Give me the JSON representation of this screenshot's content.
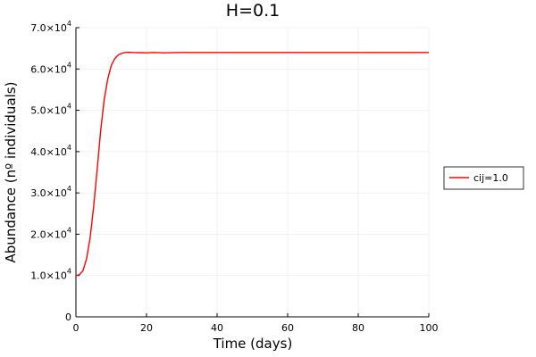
{
  "chart_data": {
    "type": "line",
    "title": "H=0.1",
    "xlabel": "Time (days)",
    "ylabel": "Abundance (nº individuals)",
    "xlim": [
      0,
      100
    ],
    "ylim": [
      0,
      70000
    ],
    "x_ticks": [
      0,
      20,
      40,
      60,
      80,
      100
    ],
    "x_tick_labels": [
      "0",
      "20",
      "40",
      "60",
      "80",
      "100"
    ],
    "y_ticks": [
      0,
      10000,
      20000,
      30000,
      40000,
      50000,
      60000,
      70000
    ],
    "y_tick_labels": [
      {
        "mantissa": "0",
        "exponent": ""
      },
      {
        "mantissa": "1.0×10",
        "exponent": "4"
      },
      {
        "mantissa": "2.0×10",
        "exponent": "4"
      },
      {
        "mantissa": "3.0×10",
        "exponent": "4"
      },
      {
        "mantissa": "4.0×10",
        "exponent": "4"
      },
      {
        "mantissa": "5.0×10",
        "exponent": "4"
      },
      {
        "mantissa": "6.0×10",
        "exponent": "4"
      },
      {
        "mantissa": "7.0×10",
        "exponent": "4"
      }
    ],
    "grid": true,
    "legend_position": "outer-right",
    "series": [
      {
        "name": "cij=1.0",
        "color": "#ff0000",
        "x": [
          0,
          1,
          2,
          3,
          4,
          5,
          6,
          7,
          8,
          9,
          10,
          11,
          12,
          13,
          14,
          15,
          16,
          18,
          20,
          22,
          25,
          30,
          40,
          50,
          60,
          70,
          80,
          90,
          100
        ],
        "y": [
          10000,
          10200,
          11200,
          14000,
          19000,
          26500,
          35500,
          45000,
          52500,
          57500,
          60800,
          62500,
          63400,
          63800,
          64000,
          64050,
          64000,
          63950,
          63900,
          64000,
          63900,
          64000,
          64000,
          64000,
          64000,
          64000,
          64000,
          64000,
          64000
        ]
      }
    ]
  }
}
